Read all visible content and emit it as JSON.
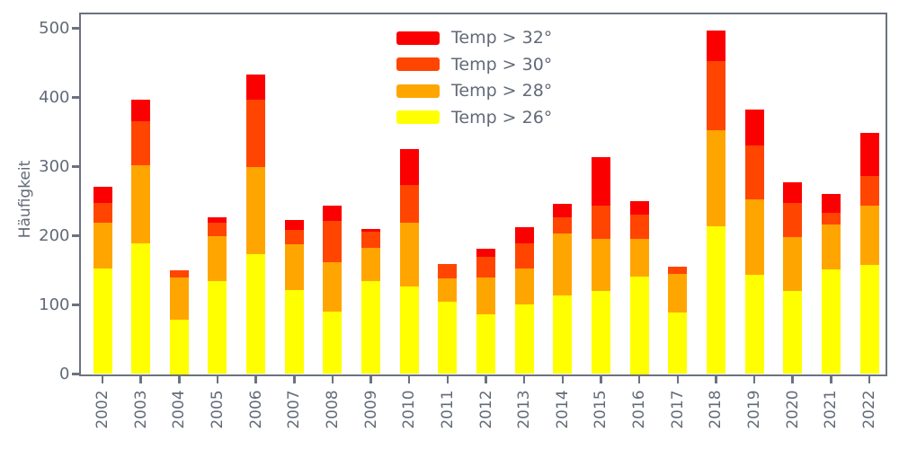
{
  "colors": {
    "background": "#ffffff",
    "spine": "#6b7280",
    "text": "#626a78",
    "red": "#fa0000",
    "orangered": "#ff4500",
    "orange": "#ffa500",
    "yellow": "#ffff00"
  },
  "chart_data": {
    "type": "bar",
    "stacked": true,
    "title": "",
    "xlabel": "",
    "ylabel": "Häufigkeit",
    "ylim": [
      0,
      522
    ],
    "yticks": [
      0,
      100,
      200,
      300,
      400,
      500
    ],
    "grid": false,
    "legend_position": "upper center",
    "categories": [
      "2002",
      "2003",
      "2004",
      "2005",
      "2006",
      "2007",
      "2008",
      "2009",
      "2010",
      "2011",
      "2012",
      "2013",
      "2014",
      "2015",
      "2016",
      "2017",
      "2018",
      "2019",
      "2020",
      "2021",
      "2022"
    ],
    "series": [
      {
        "name": "Temp > 26°",
        "color": "#ffff00",
        "values": [
          153,
          189,
          78,
          135,
          174,
          122,
          90,
          135,
          127,
          105,
          86,
          101,
          113,
          120,
          141,
          89,
          213,
          144,
          120,
          151,
          158
        ]
      },
      {
        "name": "Temp > 28°",
        "color": "#ffa500",
        "values": [
          66,
          113,
          62,
          65,
          125,
          66,
          72,
          48,
          92,
          33,
          54,
          51,
          90,
          76,
          55,
          56,
          139,
          108,
          78,
          65,
          86
        ]
      },
      {
        "name": "Temp > 30°",
        "color": "#ff4500",
        "values": [
          29,
          64,
          10,
          19,
          98,
          20,
          59,
          23,
          55,
          21,
          29,
          37,
          23,
          47,
          34,
          10,
          101,
          78,
          50,
          17,
          42
        ]
      },
      {
        "name": "Temp > 32°",
        "color": "#fa0000",
        "values": [
          23,
          31,
          0,
          8,
          36,
          15,
          22,
          4,
          52,
          0,
          12,
          23,
          20,
          71,
          20,
          0,
          44,
          53,
          29,
          28,
          63
        ]
      }
    ],
    "legend_order_top_to_bottom": [
      "Temp > 32°",
      "Temp > 30°",
      "Temp > 28°",
      "Temp > 26°"
    ]
  }
}
